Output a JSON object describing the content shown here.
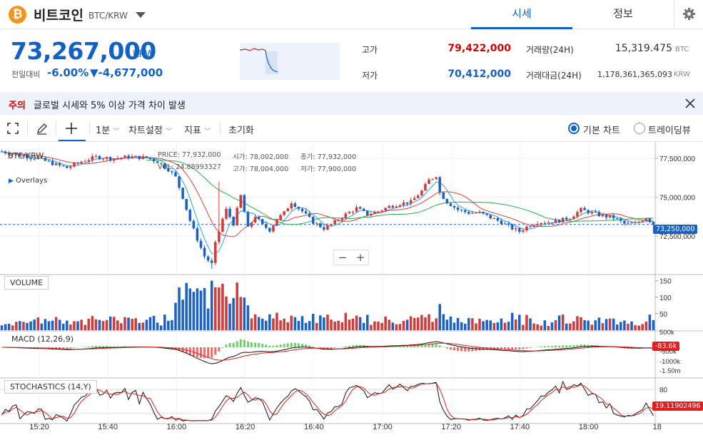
{
  "header": {
    "coin_icon": "bitcoin-icon",
    "coin_icon_glyph": "₿",
    "coin_name": "비트코인",
    "coin_symbol": "BTC/KRW",
    "tabs": [
      {
        "label": "시세",
        "active": true
      },
      {
        "label": "정보",
        "active": false
      }
    ],
    "settings_icon": "gear-icon"
  },
  "price": {
    "value": "73,267,000",
    "unit": "KRW",
    "change_label": "전일대비",
    "change_rate": "-6.00%",
    "change_price": "▼-4,677,000",
    "color": "#1261c4"
  },
  "stats": {
    "high_label": "고가",
    "high": "79,422,000",
    "low_label": "저가",
    "low": "70,412,000",
    "volume_label": "거래량(24H)",
    "volume": "15,319.475",
    "volume_unit": "BTC",
    "amount_label": "거래대금(24H)",
    "amount": "1,178,361,365,093",
    "amount_unit": "KRW"
  },
  "notice": {
    "label": "주의",
    "text": "글로벌 시세와 5% 이상 가격 차이 발생",
    "close_icon": "close-icon"
  },
  "toolbar": {
    "fullscreen_icon": "fullscreen-icon",
    "draw_icon": "pencil-icon",
    "crosshair_icon": "crosshair-icon",
    "interval": "1분",
    "chart_settings": "차트설정",
    "indicators": "지표",
    "reset": "초기화",
    "view_basic": "기본 차트",
    "view_tradingview": "트레이딩뷰"
  },
  "chart_data": {
    "type": "candlestick",
    "symbol": "BTC/KRW",
    "overlays_label": "Overlays",
    "info": {
      "price_label": "PRICE:",
      "price": "77,932,000",
      "open_label": "시가:",
      "open": "78,002,000",
      "close_label": "종가:",
      "close": "77,932,000",
      "vol_label": "VOL:",
      "vol": "24.88993327",
      "high_label": "고가:",
      "high": "78,004,000",
      "low_label": "저가:",
      "low": "77,900,000"
    },
    "current_price_label": "73,250,000",
    "current_price": 73250000,
    "y_ticks": [
      "77,500,000",
      "75,000,000",
      "72,500,000"
    ],
    "y_range": [
      70300000,
      78200000
    ],
    "x_ticks": [
      "15:20",
      "15:40",
      "16:00",
      "16:20",
      "16:40",
      "17:00",
      "17:20",
      "17:40",
      "18:00",
      "18"
    ],
    "price_path": [
      [
        0,
        77.95
      ],
      [
        5,
        77.7
      ],
      [
        10,
        77.5
      ],
      [
        15,
        77.1
      ],
      [
        18,
        76.9
      ],
      [
        22,
        77.3
      ],
      [
        26,
        77.6
      ],
      [
        30,
        77.5
      ],
      [
        35,
        77.6
      ],
      [
        40,
        77.55
      ],
      [
        43,
        77.3
      ],
      [
        46,
        76.8
      ],
      [
        48,
        76.3
      ],
      [
        50,
        75.0
      ],
      [
        52,
        73.5
      ],
      [
        54,
        72.3
      ],
      [
        56,
        71.2
      ],
      [
        58,
        70.7
      ],
      [
        59,
        72.0
      ],
      [
        61,
        73.6
      ],
      [
        62,
        74.2
      ],
      [
        64,
        73.3
      ],
      [
        66,
        75.1
      ],
      [
        68,
        73.0
      ],
      [
        70,
        73.8
      ],
      [
        72,
        73.2
      ],
      [
        74,
        72.9
      ],
      [
        76,
        73.6
      ],
      [
        78,
        74.0
      ],
      [
        80,
        74.7
      ],
      [
        83,
        74.1
      ],
      [
        86,
        73.4
      ],
      [
        89,
        73.0
      ],
      [
        92,
        73.4
      ],
      [
        95,
        73.9
      ],
      [
        98,
        74.3
      ],
      [
        101,
        73.9
      ],
      [
        104,
        74.1
      ],
      [
        107,
        74.4
      ],
      [
        110,
        74.6
      ],
      [
        113,
        74.7
      ],
      [
        116,
        75.4
      ],
      [
        118,
        76.1
      ],
      [
        120,
        76.4
      ],
      [
        121,
        75.3
      ],
      [
        123,
        74.7
      ],
      [
        126,
        74.2
      ],
      [
        129,
        74.0
      ],
      [
        132,
        74.0
      ],
      [
        135,
        73.7
      ],
      [
        138,
        73.4
      ],
      [
        141,
        73.0
      ],
      [
        143,
        72.8
      ],
      [
        145,
        73.1
      ],
      [
        148,
        73.4
      ],
      [
        151,
        73.4
      ],
      [
        154,
        73.5
      ],
      [
        157,
        73.7
      ],
      [
        160,
        74.2
      ],
      [
        163,
        74.0
      ],
      [
        166,
        73.8
      ],
      [
        169,
        73.7
      ],
      [
        172,
        73.3
      ],
      [
        175,
        73.3
      ],
      [
        178,
        73.7
      ],
      [
        180,
        73.3
      ]
    ],
    "series": [
      {
        "name": "ma-fast",
        "color": "#27a7e0"
      },
      {
        "name": "ma-mid",
        "color": "#e0403c"
      },
      {
        "name": "ma-slow",
        "color": "#22b14c"
      }
    ],
    "up_color": "#d13b3b",
    "down_color": "#1b62c4",
    "volume": {
      "label": "VOLUME",
      "y_ticks": [
        "150",
        "100",
        "50"
      ],
      "y_range": [
        0,
        160
      ]
    },
    "macd": {
      "label": "MACD (12,26,9)",
      "badge": "-83.6k",
      "y_ticks": [
        "500k",
        "-500k",
        "-1000k",
        "-1.50m"
      ]
    },
    "stochastics": {
      "label": "STOCHASTICS (14,Y)",
      "badge": "19.11902496",
      "y_ticks": [
        "80"
      ]
    },
    "zoom": {
      "out": "−",
      "in": "+"
    }
  }
}
